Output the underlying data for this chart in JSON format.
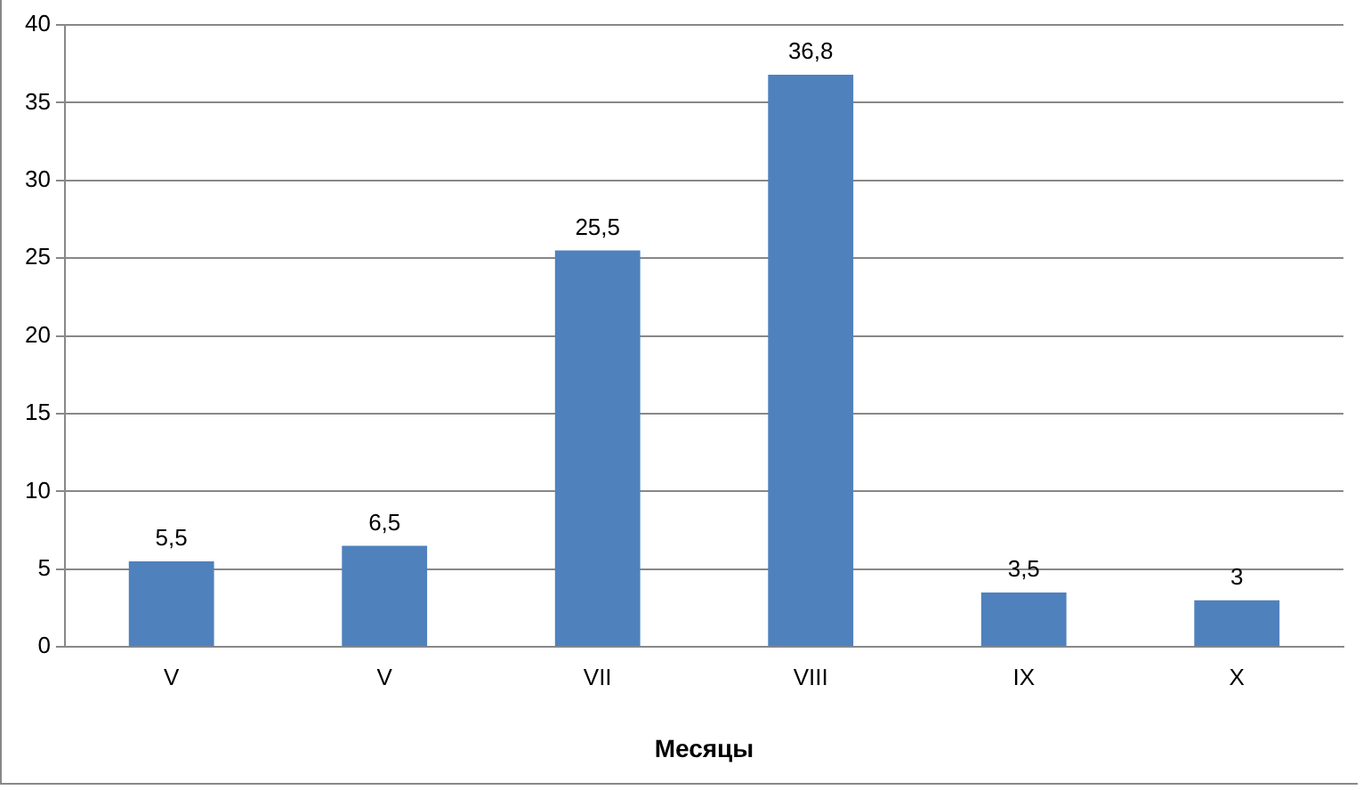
{
  "chart_data": {
    "type": "bar",
    "xlabel": "Месяцы",
    "categories": [
      "V",
      "V",
      "VII",
      "VIII",
      "IX",
      "X"
    ],
    "values": [
      5.5,
      6.5,
      25.5,
      36.8,
      3.5,
      3
    ],
    "value_labels": [
      "5,5",
      "6,5",
      "25,5",
      "36,8",
      "3,5",
      "3"
    ],
    "color": "#4f81bd",
    "ylim": [
      0,
      40
    ],
    "yticks": [
      0,
      5,
      10,
      15,
      20,
      25,
      30,
      35,
      40
    ],
    "grid": "y"
  }
}
